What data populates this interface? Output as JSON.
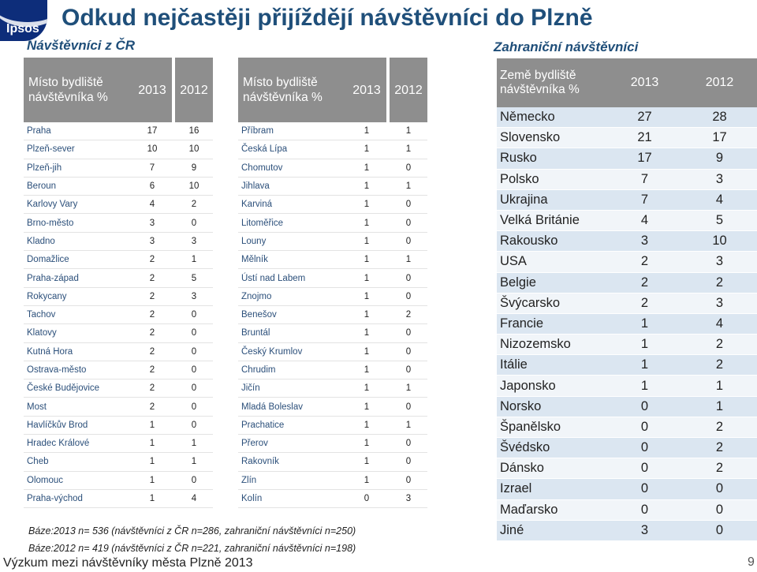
{
  "logo": {
    "text": "Ipsos"
  },
  "title": "Odkud nejčastěji přijíždějí návštěvníci do Plzně",
  "domestic": {
    "heading": "Návštěvníci z ČR",
    "header": {
      "label": "Místo bydliště návštěvníka %",
      "y2013": "2013",
      "y2012": "2012"
    },
    "left_rows": [
      {
        "name": "Praha",
        "y2013": "17",
        "y2012": "16"
      },
      {
        "name": "Plzeň-sever",
        "y2013": "10",
        "y2012": "10"
      },
      {
        "name": "Plzeň-jih",
        "y2013": "7",
        "y2012": "9"
      },
      {
        "name": "Beroun",
        "y2013": "6",
        "y2012": "10"
      },
      {
        "name": "Karlovy Vary",
        "y2013": "4",
        "y2012": "2"
      },
      {
        "name": "Brno-město",
        "y2013": "3",
        "y2012": "0"
      },
      {
        "name": "Kladno",
        "y2013": "3",
        "y2012": "3"
      },
      {
        "name": "Domažlice",
        "y2013": "2",
        "y2012": "1"
      },
      {
        "name": "Praha-západ",
        "y2013": "2",
        "y2012": "5"
      },
      {
        "name": "Rokycany",
        "y2013": "2",
        "y2012": "3"
      },
      {
        "name": "Tachov",
        "y2013": "2",
        "y2012": "0"
      },
      {
        "name": "Klatovy",
        "y2013": "2",
        "y2012": "0"
      },
      {
        "name": "Kutná Hora",
        "y2013": "2",
        "y2012": "0"
      },
      {
        "name": "Ostrava-město",
        "y2013": "2",
        "y2012": "0"
      },
      {
        "name": "České Budějovice",
        "y2013": "2",
        "y2012": "0"
      },
      {
        "name": "Most",
        "y2013": "2",
        "y2012": "0"
      },
      {
        "name": "Havlíčkův Brod",
        "y2013": "1",
        "y2012": "0"
      },
      {
        "name": "Hradec Králové",
        "y2013": "1",
        "y2012": "1"
      },
      {
        "name": "Cheb",
        "y2013": "1",
        "y2012": "1"
      },
      {
        "name": "Olomouc",
        "y2013": "1",
        "y2012": "0"
      },
      {
        "name": "Praha-východ",
        "y2013": "1",
        "y2012": "4"
      }
    ],
    "right_rows": [
      {
        "name": "Příbram",
        "y2013": "1",
        "y2012": "1"
      },
      {
        "name": "Česká Lípa",
        "y2013": "1",
        "y2012": "1"
      },
      {
        "name": "Chomutov",
        "y2013": "1",
        "y2012": "0"
      },
      {
        "name": "Jihlava",
        "y2013": "1",
        "y2012": "1"
      },
      {
        "name": "Karviná",
        "y2013": "1",
        "y2012": "0"
      },
      {
        "name": "Litoměřice",
        "y2013": "1",
        "y2012": "0"
      },
      {
        "name": "Louny",
        "y2013": "1",
        "y2012": "0"
      },
      {
        "name": "Mělník",
        "y2013": "1",
        "y2012": "1"
      },
      {
        "name": "Ústí nad Labem",
        "y2013": "1",
        "y2012": "0"
      },
      {
        "name": "Znojmo",
        "y2013": "1",
        "y2012": "0"
      },
      {
        "name": "Benešov",
        "y2013": "1",
        "y2012": "2"
      },
      {
        "name": "Bruntál",
        "y2013": "1",
        "y2012": "0"
      },
      {
        "name": "Český Krumlov",
        "y2013": "1",
        "y2012": "0"
      },
      {
        "name": "Chrudim",
        "y2013": "1",
        "y2012": "0"
      },
      {
        "name": "Jičín",
        "y2013": "1",
        "y2012": "1"
      },
      {
        "name": "Mladá Boleslav",
        "y2013": "1",
        "y2012": "0"
      },
      {
        "name": "Prachatice",
        "y2013": "1",
        "y2012": "1"
      },
      {
        "name": "Přerov",
        "y2013": "1",
        "y2012": "0"
      },
      {
        "name": "Rakovník",
        "y2013": "1",
        "y2012": "0"
      },
      {
        "name": "Zlín",
        "y2013": "1",
        "y2012": "0"
      },
      {
        "name": "Kolín",
        "y2013": "0",
        "y2012": "3"
      }
    ]
  },
  "foreign": {
    "heading": "Zahraniční návštěvníci",
    "header": {
      "label": "Země bydliště návštěvníka %",
      "y2013": "2013",
      "y2012": "2012"
    },
    "rows": [
      {
        "name": "Německo",
        "y2013": "27",
        "y2012": "28"
      },
      {
        "name": "Slovensko",
        "y2013": "21",
        "y2012": "17"
      },
      {
        "name": "Rusko",
        "y2013": "17",
        "y2012": "9"
      },
      {
        "name": "Polsko",
        "y2013": "7",
        "y2012": "3"
      },
      {
        "name": "Ukrajina",
        "y2013": "7",
        "y2012": "4"
      },
      {
        "name": "Velká Británie",
        "y2013": "4",
        "y2012": "5"
      },
      {
        "name": "Rakousko",
        "y2013": "3",
        "y2012": "10"
      },
      {
        "name": "USA",
        "y2013": "2",
        "y2012": "3"
      },
      {
        "name": "Belgie",
        "y2013": "2",
        "y2012": "2"
      },
      {
        "name": "Švýcarsko",
        "y2013": "2",
        "y2012": "3"
      },
      {
        "name": "Francie",
        "y2013": "1",
        "y2012": "4"
      },
      {
        "name": "Nizozemsko",
        "y2013": "1",
        "y2012": "2"
      },
      {
        "name": "Itálie",
        "y2013": "1",
        "y2012": "2"
      },
      {
        "name": "Japonsko",
        "y2013": "1",
        "y2012": "1"
      },
      {
        "name": "Norsko",
        "y2013": "0",
        "y2012": "1"
      },
      {
        "name": "Španělsko",
        "y2013": "0",
        "y2012": "2"
      },
      {
        "name": "Švédsko",
        "y2013": "0",
        "y2012": "2"
      },
      {
        "name": "Dánsko",
        "y2013": "0",
        "y2012": "2"
      },
      {
        "name": "Izrael",
        "y2013": "0",
        "y2012": "0"
      },
      {
        "name": "Maďarsko",
        "y2013": "0",
        "y2012": "0"
      },
      {
        "name": "Jiné",
        "y2013": "3",
        "y2012": "0"
      }
    ]
  },
  "base_2013": "Báze:2013 n= 536 (návštěvníci z ČR n=286, zahraniční návštěvníci n=250)",
  "base_2012": "Báze:2012  n= 419 (návštěvníci z ČR n=221, zahraniční návštěvníci n=198)",
  "footer": "Výzkum mezi návštěvníky města Plzně 2013",
  "page_number": "9"
}
